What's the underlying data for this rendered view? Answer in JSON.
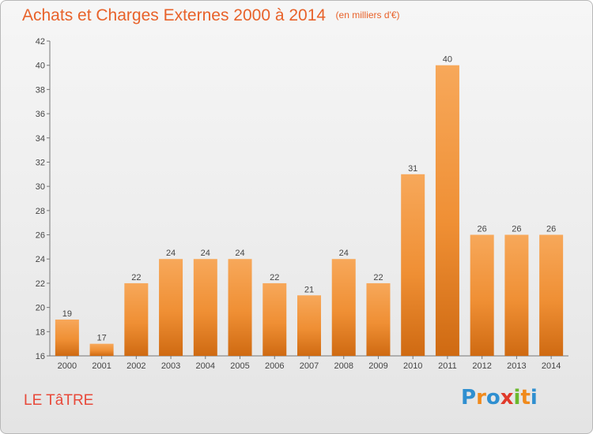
{
  "chart_data": {
    "type": "bar",
    "title": "Achats et Charges Externes 2000 à 2014",
    "unit": "(en milliers d'€)",
    "categories": [
      "2000",
      "2001",
      "2002",
      "2003",
      "2004",
      "2005",
      "2006",
      "2007",
      "2008",
      "2009",
      "2010",
      "2011",
      "2012",
      "2013",
      "2014"
    ],
    "values": [
      19,
      17,
      22,
      24,
      24,
      24,
      22,
      21,
      24,
      22,
      31,
      40,
      26,
      26,
      26
    ],
    "ylim": [
      16,
      42
    ],
    "yticks": [
      16,
      18,
      20,
      22,
      24,
      26,
      28,
      30,
      32,
      34,
      36,
      38,
      40,
      42
    ],
    "grid": false,
    "bar_color": "#f0943e"
  },
  "footer": {
    "town": "LE TâTRE",
    "logo_letters": [
      "P",
      "r",
      "o",
      "x",
      "i",
      "t",
      "i"
    ],
    "logo_colors": [
      "#2f8fd0",
      "#f08a1c",
      "#2f8fd0",
      "#e03a2a",
      "#6ab82c",
      "#f08a1c",
      "#2f8fd0"
    ]
  }
}
